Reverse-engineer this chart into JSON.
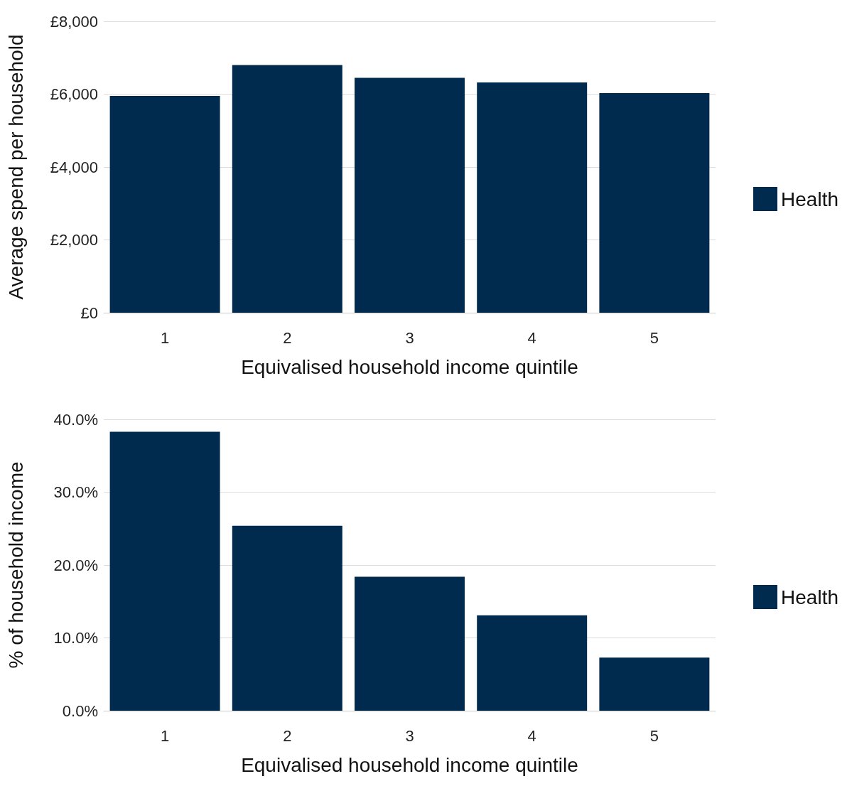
{
  "chart_data": [
    {
      "type": "bar",
      "xlabel": "Equivalised household income quintile",
      "ylabel": "Average spend per household",
      "categories": [
        "1",
        "2",
        "3",
        "4",
        "5"
      ],
      "series": [
        {
          "name": "Health",
          "color": "#002b4f",
          "values": [
            5950,
            6800,
            6450,
            6320,
            6030
          ]
        }
      ],
      "ylim": [
        0,
        8000
      ],
      "yticks": [
        {
          "value": 0,
          "label": "£0"
        },
        {
          "value": 2000,
          "label": "£2,000"
        },
        {
          "value": 4000,
          "label": "£4,000"
        },
        {
          "value": 6000,
          "label": "£6,000"
        },
        {
          "value": 8000,
          "label": "£8,000"
        }
      ],
      "grid": "y",
      "legend": "right"
    },
    {
      "type": "bar",
      "xlabel": "Equivalised household income quintile",
      "ylabel": "% of household income",
      "categories": [
        "1",
        "2",
        "3",
        "4",
        "5"
      ],
      "series": [
        {
          "name": "Health",
          "color": "#002b4f",
          "values": [
            38.3,
            25.4,
            18.4,
            13.1,
            7.3
          ]
        }
      ],
      "ylim": [
        0,
        40
      ],
      "yticks": [
        {
          "value": 0,
          "label": "0.0%"
        },
        {
          "value": 10,
          "label": "10.0%"
        },
        {
          "value": 20,
          "label": "20.0%"
        },
        {
          "value": 30,
          "label": "30.0%"
        },
        {
          "value": 40,
          "label": "40.0%"
        }
      ],
      "grid": "y",
      "legend": "right"
    }
  ]
}
